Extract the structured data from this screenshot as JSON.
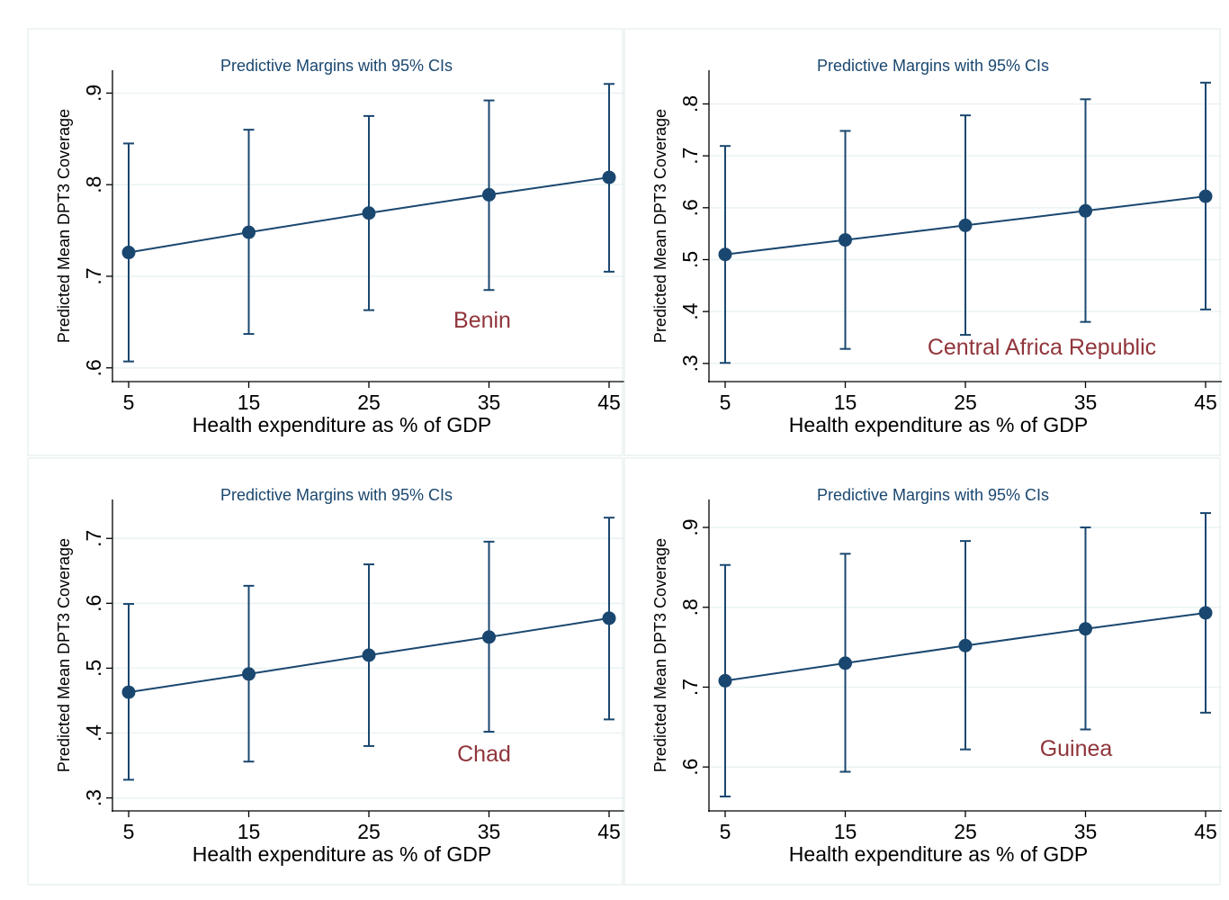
{
  "colors": {
    "line": "#1a476f",
    "label": "#90353b",
    "axis": "#000000",
    "grid": "#eaf2f3",
    "panel_border": "#dfe8ea",
    "panel_bg": "#ffffff",
    "page_bg": "#ffffff"
  },
  "chart_data": [
    {
      "type": "line",
      "title": "Predictive Margins with 95% CIs",
      "xlabel": "Health expenditure as % of GDP",
      "ylabel": "Predicted Mean DPT3 Coverage",
      "annotation": "Benin",
      "x": [
        5,
        15,
        25,
        35,
        45
      ],
      "x_ticks": [
        "5",
        "15",
        "25",
        "35",
        "45"
      ],
      "y_ticks": [
        0.6,
        0.7,
        0.8,
        0.9
      ],
      "y_tick_labels": [
        ".6",
        ".7",
        ".8",
        ".9"
      ],
      "ylim": [
        0.585,
        0.925
      ],
      "grid": true,
      "series": [
        {
          "values": [
            0.726,
            0.748,
            0.769,
            0.789,
            0.808
          ],
          "ci_low": [
            0.607,
            0.637,
            0.663,
            0.685,
            0.705
          ],
          "ci_high": [
            0.845,
            0.86,
            0.875,
            0.892,
            0.91
          ]
        }
      ]
    },
    {
      "type": "line",
      "title": "Predictive Margins with 95% CIs",
      "xlabel": "Health expenditure as % of GDP",
      "ylabel": "Predicted Mean DPT3 Coverage",
      "annotation": "Central Africa Republic",
      "x": [
        5,
        15,
        25,
        35,
        45
      ],
      "x_ticks": [
        "5",
        "15",
        "25",
        "35",
        "45"
      ],
      "y_ticks": [
        0.3,
        0.4,
        0.5,
        0.6,
        0.7,
        0.8
      ],
      "y_tick_labels": [
        ".3",
        ".4",
        ".5",
        ".6",
        ".7",
        ".8"
      ],
      "ylim": [
        0.265,
        0.865
      ],
      "grid": true,
      "series": [
        {
          "values": [
            0.51,
            0.538,
            0.566,
            0.594,
            0.622
          ],
          "ci_low": [
            0.301,
            0.328,
            0.355,
            0.38,
            0.404
          ],
          "ci_high": [
            0.719,
            0.748,
            0.778,
            0.809,
            0.841
          ]
        }
      ]
    },
    {
      "type": "line",
      "title": "Predictive Margins with 95% CIs",
      "xlabel": "Health expenditure as % of GDP",
      "ylabel": "Predicted Mean DPT3 Coverage",
      "annotation": "Chad",
      "x": [
        5,
        15,
        25,
        35,
        45
      ],
      "x_ticks": [
        "5",
        "15",
        "25",
        "35",
        "45"
      ],
      "y_ticks": [
        0.3,
        0.4,
        0.5,
        0.6,
        0.7
      ],
      "y_tick_labels": [
        ".3",
        ".4",
        ".5",
        ".6",
        ".7"
      ],
      "ylim": [
        0.28,
        0.76
      ],
      "grid": true,
      "series": [
        {
          "values": [
            0.463,
            0.491,
            0.52,
            0.548,
            0.577
          ],
          "ci_low": [
            0.328,
            0.356,
            0.38,
            0.402,
            0.421
          ],
          "ci_high": [
            0.599,
            0.627,
            0.66,
            0.695,
            0.732
          ]
        }
      ]
    },
    {
      "type": "line",
      "title": "Predictive Margins with 95% CIs",
      "xlabel": "Health expenditure as % of GDP",
      "ylabel": "Predicted Mean DPT3 Coverage",
      "annotation": "Guinea",
      "x": [
        5,
        15,
        25,
        35,
        45
      ],
      "x_ticks": [
        "5",
        "15",
        "25",
        "35",
        "45"
      ],
      "y_ticks": [
        0.6,
        0.7,
        0.8,
        0.9
      ],
      "y_tick_labels": [
        ".6",
        ".7",
        ".8",
        ".9"
      ],
      "ylim": [
        0.545,
        0.935
      ],
      "grid": true,
      "series": [
        {
          "values": [
            0.708,
            0.73,
            0.752,
            0.773,
            0.793
          ],
          "ci_low": [
            0.563,
            0.594,
            0.622,
            0.647,
            0.668
          ],
          "ci_high": [
            0.853,
            0.867,
            0.883,
            0.9,
            0.918
          ]
        }
      ]
    }
  ]
}
